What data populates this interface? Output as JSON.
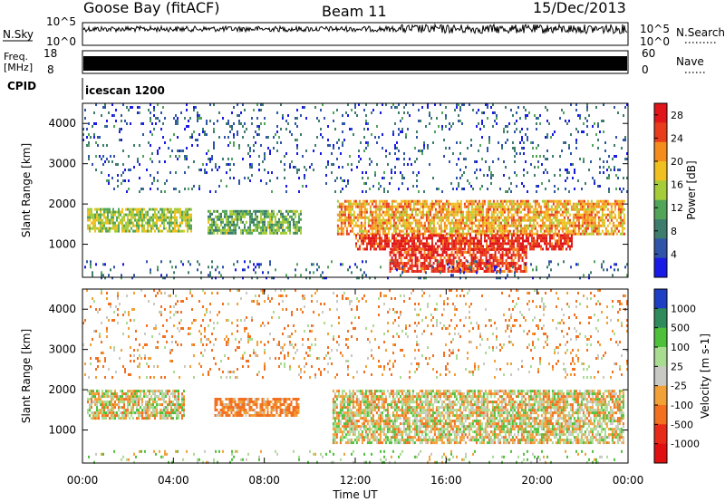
{
  "header": {
    "station": "Goose Bay (fitACF)",
    "beam": "Beam 11",
    "date": "15/Dec/2013"
  },
  "top_panels": {
    "nsky_label": "N.Sky",
    "nsky_ticks": [
      "10^5",
      "10^0"
    ],
    "nsearch_label": "N.Search",
    "nsearch_ticks": [
      "10^5",
      "10^0"
    ],
    "freq_label_line1": "Freq.",
    "freq_label_line2": "[MHz]",
    "freq_ticks": [
      "18",
      "8"
    ],
    "nave_label": "Nave",
    "nave_ticks": [
      "60",
      "0"
    ],
    "cpid_label": "CPID",
    "cpid_value": "icescan 1200"
  },
  "chart_data": [
    {
      "type": "heatmap",
      "name": "power",
      "xlabel": "Time UT",
      "ylabel": "Slant Range [km]",
      "xlim": [
        0,
        24
      ],
      "ylim": [
        180,
        4500
      ],
      "yticks": [
        "1000",
        "2000",
        "3000",
        "4000"
      ],
      "colorbar": {
        "label": "Power [dB]",
        "ticks": [
          "4",
          "8",
          "12",
          "16",
          "20",
          "24",
          "28"
        ],
        "range": [
          0,
          30
        ],
        "colors": [
          "#1a1ae6",
          "#2e55a8",
          "#3e7d6e",
          "#52a558",
          "#a6cc3a",
          "#f0c020",
          "#f58c1e",
          "#e83c1c",
          "#e0161a"
        ]
      },
      "regions": [
        {
          "t0": 0.2,
          "t1": 4.8,
          "r0": 1350,
          "r1": 1900,
          "val": 15
        },
        {
          "t0": 5.5,
          "t1": 9.6,
          "r0": 1300,
          "r1": 1850,
          "val": 12
        },
        {
          "t0": 11.2,
          "t1": 23.8,
          "r0": 1250,
          "r1": 2100,
          "val": 20
        },
        {
          "t0": 12.0,
          "t1": 21.5,
          "r0": 900,
          "r1": 1250,
          "val": 27
        },
        {
          "t0": 13.5,
          "t1": 19.5,
          "r0": 350,
          "r1": 900,
          "val": 26
        },
        {
          "t0": 0.0,
          "t1": 24.0,
          "r0": 180,
          "r1": 600,
          "val": 6
        },
        {
          "t0": 0.0,
          "t1": 24.0,
          "r0": 2300,
          "r1": 4500,
          "val": 6
        }
      ]
    },
    {
      "type": "heatmap",
      "name": "velocity",
      "xlabel": "Time UT",
      "ylabel": "Slant Range [km]",
      "xlim": [
        0,
        24
      ],
      "ylim": [
        180,
        4500
      ],
      "yticks": [
        "1000",
        "2000",
        "3000",
        "4000"
      ],
      "xticks": [
        "00:00",
        "04:00",
        "08:00",
        "12:00",
        "16:00",
        "20:00",
        "00:00"
      ],
      "colorbar": {
        "label": "Velocity [m s-1]",
        "ticks": [
          "1000",
          "500",
          "100",
          "25",
          "-25",
          "-100",
          "-500",
          "-1000"
        ],
        "colors": [
          "#1c3fc4",
          "#2f8a5c",
          "#4fc03a",
          "#a8dc90",
          "#c9c9c4",
          "#f2a038",
          "#f27020",
          "#e82a18",
          "#e01010"
        ]
      },
      "regions": [
        {
          "t0": 0.2,
          "t1": 4.5,
          "r0": 1300,
          "r1": 2000,
          "val": 0
        },
        {
          "t0": 5.8,
          "t1": 9.5,
          "r0": 1350,
          "r1": 1800,
          "val": -150
        },
        {
          "t0": 11.0,
          "t1": 23.8,
          "r0": 700,
          "r1": 2000,
          "val": 0
        },
        {
          "t0": 0.0,
          "t1": 24.0,
          "r0": 180,
          "r1": 500,
          "val": 60
        },
        {
          "t0": 0.0,
          "t1": 24.0,
          "r0": 2300,
          "r1": 4500,
          "val": -80
        }
      ]
    }
  ]
}
